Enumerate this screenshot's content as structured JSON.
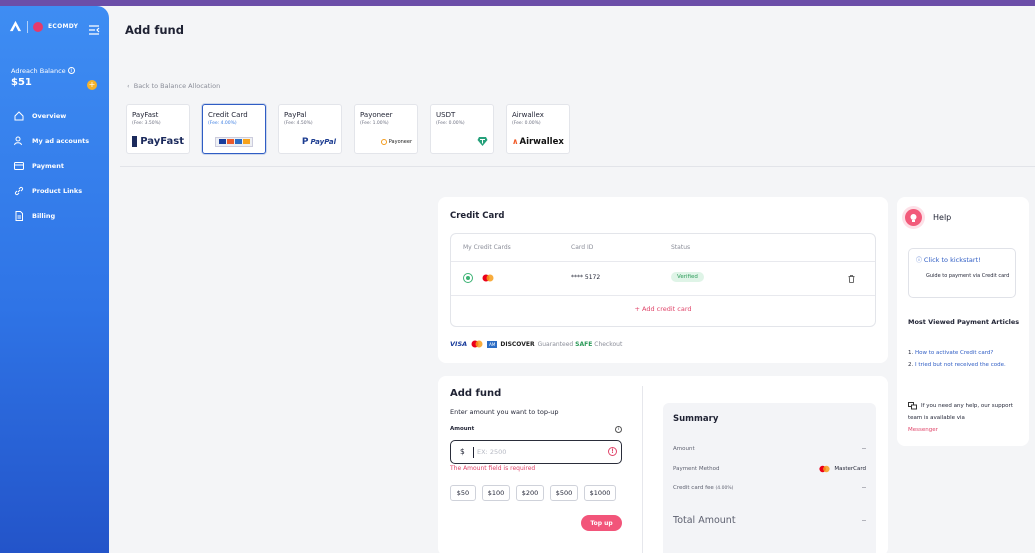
{
  "brand": {
    "name": "ECOMDY",
    "accent": "#2f74e6",
    "topbar": "#6b4ea8"
  },
  "sidebar": {
    "balance_label": "Adreach Balance",
    "balance_value": "$51",
    "items": [
      {
        "label": "Overview",
        "icon": "home-icon"
      },
      {
        "label": "My ad accounts",
        "icon": "users-icon"
      },
      {
        "label": "Payment",
        "icon": "credit-card-icon"
      },
      {
        "label": "Product Links",
        "icon": "link-icon"
      },
      {
        "label": "Billing",
        "icon": "document-icon"
      }
    ]
  },
  "header": {
    "title": "Add fund",
    "back_label": "Back to Balance Allocation"
  },
  "methods": [
    {
      "name": "PayFast",
      "fee": "(Fee: 3.50%)",
      "logo": "PayFast"
    },
    {
      "name": "Credit Card",
      "fee": "(Fee: 4.00%)",
      "logo": "card-logos",
      "selected": true
    },
    {
      "name": "PayPal",
      "fee": "(Fee: 4.50%)",
      "logo": "PayPal"
    },
    {
      "name": "Payoneer",
      "fee": "(Fee: 1.00%)",
      "logo": "Payoneer"
    },
    {
      "name": "USDT",
      "fee": "(Fee: 0.00%)",
      "logo": "tether-icon"
    },
    {
      "name": "Airwallex",
      "fee": "(Fee: 0.00%)",
      "logo": "Airwallex"
    }
  ],
  "credit_card": {
    "title": "Credit Card",
    "columns": [
      "My Credit Cards",
      "Card ID",
      "Status"
    ],
    "card": {
      "number": "**** 5172",
      "status": "Verified"
    },
    "add_label": "+ Add credit card",
    "brands": [
      "VISA",
      "DISCOVER"
    ],
    "guarantee": {
      "before": "Guaranteed",
      "safe": "SAFE",
      "after": "Checkout"
    }
  },
  "add_fund": {
    "title": "Add fund",
    "subtitle": "Enter amount you want to top-up",
    "amount_label": "Amount",
    "currency": "$",
    "placeholder": "EX: 2500",
    "error": "The Amount field is required",
    "chips": [
      "$50",
      "$100",
      "$200",
      "$500",
      "$1000"
    ],
    "topup_label": "Top up"
  },
  "summary": {
    "title": "Summary",
    "amount_label": "Amount",
    "amount_value": "--",
    "method_label": "Payment Method",
    "method_value": "MasterCard",
    "fee_label": "Credit card fee",
    "fee_pct": "(4.00%)",
    "fee_value": "--",
    "total_label": "Total Amount",
    "total_value": "--"
  },
  "help": {
    "title": "Help",
    "kick_link": "Click to kickstart!",
    "kick_desc": "Guide to payment via Credit card",
    "most_viewed": "Most Viewed Payment Articles",
    "articles": [
      {
        "num": "1.",
        "text": "How to activate Credit card?"
      },
      {
        "num": "2.",
        "text": "I tried but not received the code."
      }
    ],
    "support_text": "If you need any help, our support team is available via",
    "messenger": "Messenger"
  }
}
